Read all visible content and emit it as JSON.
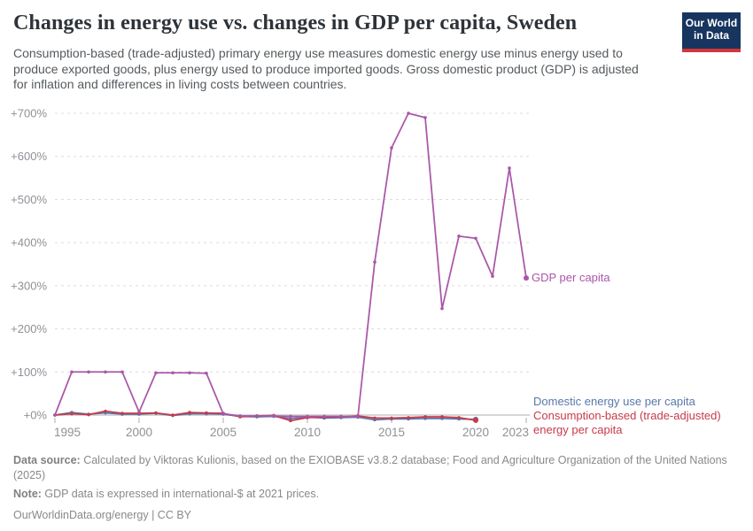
{
  "header": {
    "title": "Changes in energy use vs. changes in GDP per capita, Sweden",
    "subtitle": "Consumption-based (trade-adjusted) primary energy use measures domestic energy use minus energy used to produce exported goods, plus energy used to produce imported goods. Gross domestic product (GDP) is adjusted for inflation and differences in living costs between countries.",
    "logo": {
      "line1": "Our World",
      "line2": "in Data",
      "bg_color": "#17355f",
      "accent_color": "#d0353c"
    }
  },
  "chart_data": {
    "type": "line",
    "title": "Changes in energy use vs. changes in GDP per capita, Sweden",
    "x": [
      1995,
      1996,
      1997,
      1998,
      1999,
      2000,
      2001,
      2002,
      2003,
      2004,
      2005,
      2006,
      2007,
      2008,
      2009,
      2010,
      2011,
      2012,
      2013,
      2014,
      2015,
      2016,
      2017,
      2018,
      2019,
      2020,
      2021,
      2022,
      2023
    ],
    "series": [
      {
        "name": "Domestic energy use per capita",
        "color": "#5878ab",
        "values": [
          0,
          6,
          2,
          5,
          2,
          2,
          4,
          -1,
          3,
          3,
          2,
          -3,
          -4,
          -3,
          -8,
          -5,
          -7,
          -6,
          -5,
          -11,
          -9,
          -9,
          -8,
          -8,
          -9,
          -10,
          null,
          null,
          null
        ]
      },
      {
        "name": "Consumption-based (trade-adjusted) energy per capita",
        "color": "#c73a4a",
        "values": [
          0,
          3,
          1,
          9,
          4,
          4,
          5,
          0,
          6,
          5,
          4,
          -4,
          -2,
          -1,
          -13,
          -6,
          -5,
          -4,
          -2,
          -7,
          -7,
          -6,
          -4,
          -4,
          -6,
          -12,
          null,
          null,
          null
        ]
      },
      {
        "name": "GDP per capita",
        "color": "#a957a8",
        "values": [
          0,
          100,
          100,
          100,
          100,
          7,
          98,
          98,
          98,
          97,
          3,
          -2,
          -2,
          -2,
          -3,
          -3,
          -3,
          -3,
          -4,
          355,
          620,
          700,
          690,
          247,
          415,
          410,
          322,
          573,
          318
        ]
      }
    ],
    "xticks": [
      {
        "value": 1995,
        "label": "1995"
      },
      {
        "value": 2000,
        "label": "2000"
      },
      {
        "value": 2005,
        "label": "2005"
      },
      {
        "value": 2010,
        "label": "2010"
      },
      {
        "value": 2015,
        "label": "2015"
      },
      {
        "value": 2020,
        "label": "2020"
      },
      {
        "value": 2023,
        "label": "2023"
      }
    ],
    "yticks": [
      {
        "value": 0,
        "label": "+0%"
      },
      {
        "value": 100,
        "label": "+100%"
      },
      {
        "value": 200,
        "label": "+200%"
      },
      {
        "value": 300,
        "label": "+300%"
      },
      {
        "value": 400,
        "label": "+400%"
      },
      {
        "value": 500,
        "label": "+500%"
      },
      {
        "value": 600,
        "label": "+600%"
      },
      {
        "value": 700,
        "label": "+700%"
      },
      {
        "value": 800,
        "label": ""
      }
    ],
    "ylim": [
      -15,
      700
    ],
    "xlim": [
      1995,
      2023
    ],
    "xlabel": "",
    "ylabel": "",
    "grid": "horizontal-dashed, solid zero line",
    "legend_position": "inline line-end labels, right of plot"
  },
  "line_labels": {
    "gdp": "GDP per capita",
    "domestic": "Domestic energy use per capita",
    "consumption": "Consumption-based (trade-adjusted) energy per capita"
  },
  "footer": {
    "source_label": "Data source:",
    "source_text": " Calculated by Viktoras Kulionis, based on the EXIOBASE v3.8.2 database; Food and Agriculture Organization of the United Nations (2025)",
    "note_label": "Note:",
    "note_text": " GDP data is expressed in international-$ at 2021 prices.",
    "link": "OurWorldinData.org/energy | CC BY"
  }
}
